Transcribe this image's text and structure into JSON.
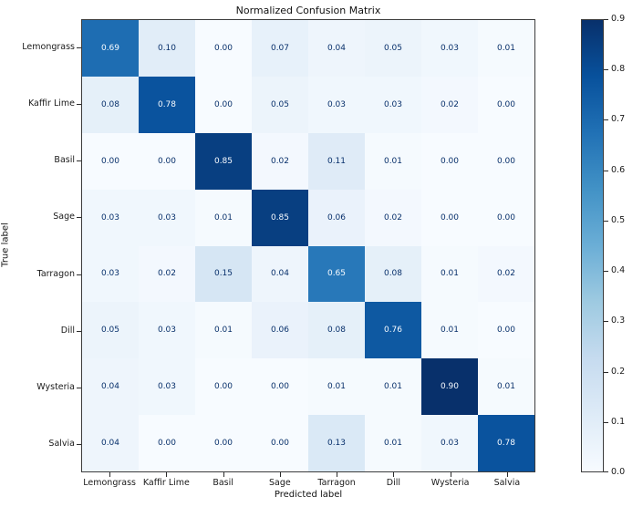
{
  "figure": {
    "background": "#ffffff"
  },
  "chart_data": {
    "type": "heatmap",
    "title": "Normalized Confusion Matrix",
    "xlabel": "Predicted label",
    "ylabel": "True label",
    "x_categories": [
      "Lemongrass",
      "Kaffir Lime",
      "Basil",
      "Sage",
      "Tarragon",
      "Dill",
      "Wysteria",
      "Salvia"
    ],
    "y_categories": [
      "Lemongrass",
      "Kaffir Lime",
      "Basil",
      "Sage",
      "Tarragon",
      "Dill",
      "Wysteria",
      "Salvia"
    ],
    "matrix": [
      [
        0.69,
        0.1,
        0.0,
        0.07,
        0.04,
        0.05,
        0.03,
        0.01
      ],
      [
        0.08,
        0.78,
        0.0,
        0.05,
        0.03,
        0.03,
        0.02,
        0.0
      ],
      [
        0.0,
        0.0,
        0.85,
        0.02,
        0.11,
        0.01,
        0.0,
        0.0
      ],
      [
        0.03,
        0.03,
        0.01,
        0.85,
        0.06,
        0.02,
        0.0,
        0.0
      ],
      [
        0.03,
        0.02,
        0.15,
        0.04,
        0.65,
        0.08,
        0.01,
        0.02
      ],
      [
        0.05,
        0.03,
        0.01,
        0.06,
        0.08,
        0.76,
        0.01,
        0.0
      ],
      [
        0.04,
        0.03,
        0.0,
        0.0,
        0.01,
        0.01,
        0.9,
        0.01
      ],
      [
        0.04,
        0.0,
        0.0,
        0.0,
        0.13,
        0.01,
        0.03,
        0.78
      ]
    ],
    "vmin": 0.0,
    "vmax": 0.9,
    "value_decimals": 2,
    "colorbar": {
      "position": "right",
      "ticks": [
        0.0,
        0.1,
        0.2,
        0.3,
        0.4,
        0.5,
        0.6,
        0.7,
        0.8,
        0.9
      ],
      "tick_decimals": 1
    },
    "colormap": {
      "name": "Blues",
      "stops": [
        "#f7fbff",
        "#deebf7",
        "#c6dbef",
        "#9ecae1",
        "#6baed6",
        "#4292c6",
        "#2171b5",
        "#08519c",
        "#08306b"
      ]
    },
    "text_color_light_cells": "#08306b",
    "text_color_dark_cells": "#f7fbff",
    "grid": false
  }
}
